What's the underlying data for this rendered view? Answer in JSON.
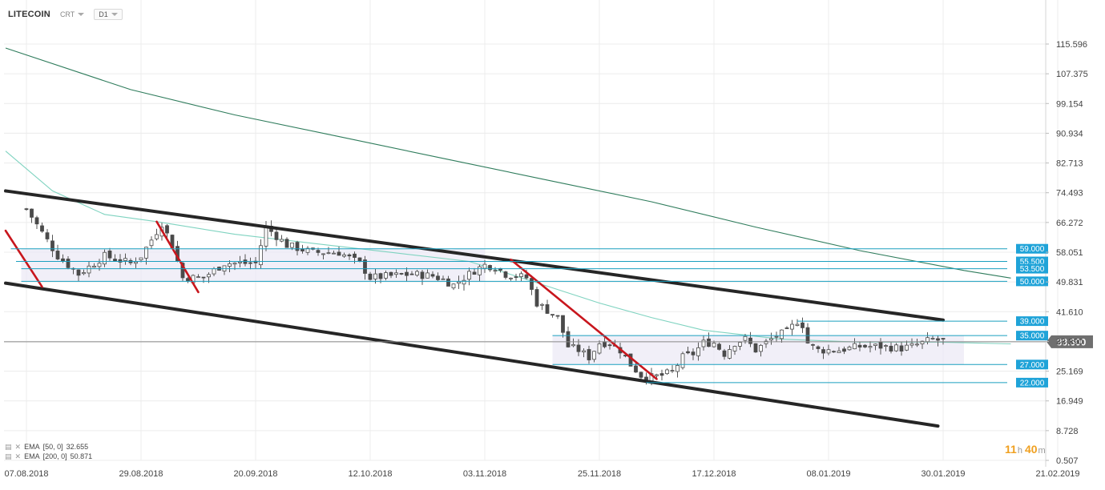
{
  "header": {
    "symbol": "LITECOIN",
    "market": "CRT",
    "timeframe": "D1"
  },
  "legend": [
    {
      "label": "EMA",
      "params": "[50, 0]",
      "value": "32.655"
    },
    {
      "label": "EMA",
      "params": "[200, 0]",
      "value": "50.871"
    }
  ],
  "timer": {
    "hours": "11",
    "hours_unit": "h",
    "minutes": "40",
    "minutes_unit": "m"
  },
  "colors": {
    "channel": "#262626",
    "trend_red": "#c8161d",
    "level_line": "#1a9fbf",
    "level_badge": "#1fa3d8",
    "price_badge": "#6f6f6f",
    "ema50": "#7fd3c0",
    "ema200": "#2f7c5c",
    "zone": "#ece9f6"
  },
  "chart_data": {
    "type": "candlestick",
    "title": "",
    "y_axis_ticks": [
      "115.596",
      "107.375",
      "99.154",
      "90.934",
      "82.713",
      "74.493",
      "66.272",
      "58.051",
      "49.831",
      "41.610",
      "33.390",
      "25.169",
      "16.949",
      "8.728",
      "0.507"
    ],
    "ylim": [
      0.507,
      115.596
    ],
    "x_axis_ticks": [
      "07.08.2018",
      "29.08.2018",
      "20.09.2018",
      "12.10.2018",
      "03.11.2018",
      "25.11.2018",
      "17.12.2018",
      "08.01.2019",
      "30.01.2019",
      "21.02.2019"
    ],
    "current_price": "33.300",
    "levels": [
      "59.000",
      "55.500",
      "53.500",
      "50.000",
      "39.000",
      "35.000",
      "27.000",
      "22.000"
    ],
    "ohlc_approx": [
      {
        "x": "07.08.2018",
        "close": 66
      },
      {
        "x": "29.08.2018",
        "close": 64
      },
      {
        "x": "20.09.2018",
        "close": 61
      },
      {
        "x": "12.10.2018",
        "close": 52
      },
      {
        "x": "03.11.2018",
        "close": 54
      },
      {
        "x": "25.11.2018",
        "close": 33
      },
      {
        "x": "17.12.2018",
        "close": 28
      },
      {
        "x": "08.01.2019",
        "close": 36
      },
      {
        "x": "30.01.2019",
        "close": 32
      }
    ],
    "ema": [
      {
        "name": "EMA [50, 0]",
        "start": 86,
        "end": 32.655
      },
      {
        "name": "EMA [200, 0]",
        "start": 114.5,
        "end": 50.871
      }
    ],
    "grid": true,
    "legend_position": "bottom-left"
  }
}
